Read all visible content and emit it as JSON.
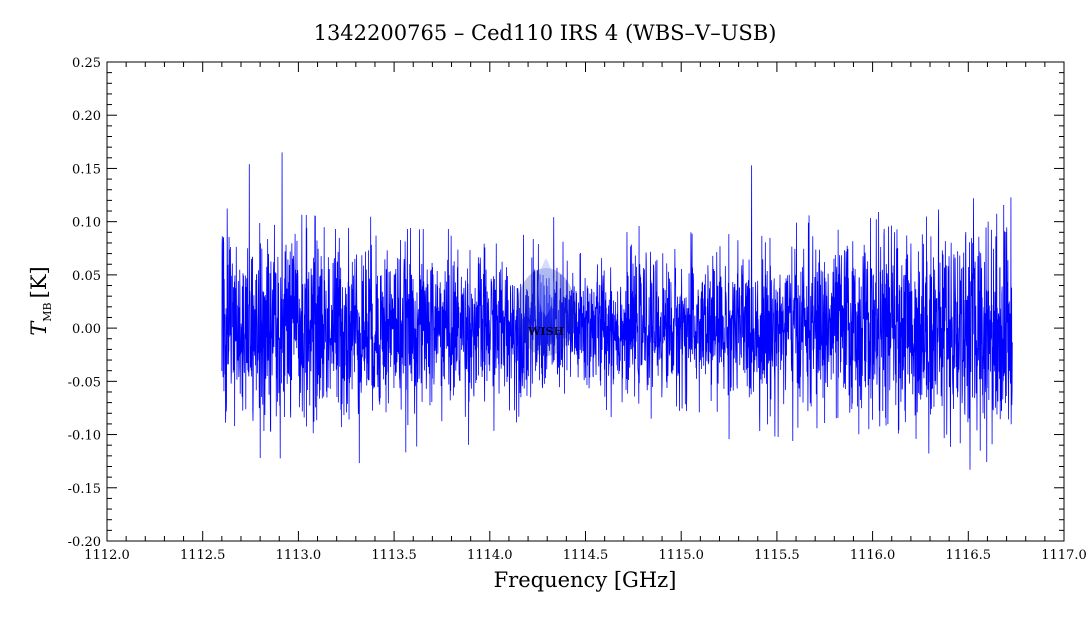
{
  "chart_data": {
    "type": "line",
    "title": "1342200765 – Ced110 IRS 4 (WBS–V–USB)",
    "xlabel": "Frequency [GHz]",
    "ylabel_main": "T",
    "ylabel_sub": "MB",
    "ylabel_unit": "[K]",
    "xlim": [
      1112.0,
      1117.0
    ],
    "ylim": [
      -0.2,
      0.25
    ],
    "x_ticks": [
      "1112.0",
      "1112.5",
      "1113.0",
      "1113.5",
      "1114.0",
      "1114.5",
      "1115.0",
      "1115.5",
      "1116.0",
      "1116.5",
      "1117.0"
    ],
    "y_ticks": [
      "-0.20",
      "-0.15",
      "-0.10",
      "-0.05",
      "0.00",
      "0.05",
      "0.10",
      "0.15",
      "0.20",
      "0.25"
    ],
    "grid": false,
    "line_color": "#0000ff",
    "series": [
      {
        "x_range": [
          1112.6,
          1116.73
        ],
        "mean": 0.0,
        "noise_rms": 0.035,
        "peak_max": 0.195,
        "peak_min": -0.162,
        "noise_profile": [
          {
            "x": 1112.6,
            "rms": 0.05
          },
          {
            "x": 1113.0,
            "rms": 0.045
          },
          {
            "x": 1113.6,
            "rms": 0.038
          },
          {
            "x": 1114.2,
            "rms": 0.032
          },
          {
            "x": 1114.8,
            "rms": 0.03
          },
          {
            "x": 1115.4,
            "rms": 0.036
          },
          {
            "x": 1116.0,
            "rms": 0.042
          },
          {
            "x": 1116.73,
            "rms": 0.052
          }
        ]
      }
    ],
    "watermark": "WISH"
  }
}
